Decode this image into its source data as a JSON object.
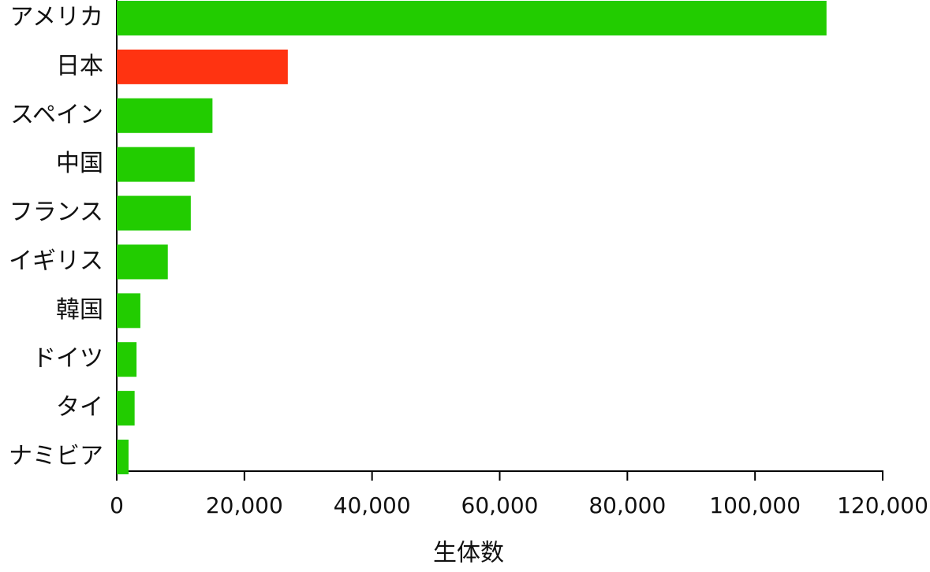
{
  "chart_data": {
    "type": "bar",
    "orientation": "horizontal",
    "categories": [
      "アメリカ",
      "日本",
      "スペイン",
      "中国",
      "フランス",
      "イギリス",
      "韓国",
      "ドイツ",
      "タイ",
      "ナミビア"
    ],
    "values": [
      111200,
      26800,
      15000,
      12200,
      11600,
      8000,
      3700,
      3100,
      2800,
      1850
    ],
    "colors": [
      "#22cc00",
      "#ff3311",
      "#22cc00",
      "#22cc00",
      "#22cc00",
      "#22cc00",
      "#22cc00",
      "#22cc00",
      "#22cc00",
      "#22cc00"
    ],
    "x_label": "生体数",
    "xlim": [
      0,
      120000
    ],
    "xticks": [
      0,
      {
        "value": 20000,
        "label": "20,000"
      },
      {
        "value": 40000,
        "label": "40,000"
      },
      {
        "value": 60000,
        "label": "60,000"
      },
      {
        "value": 80000,
        "label": "80,000"
      },
      {
        "value": 100000,
        "label": "100,000"
      },
      {
        "value": 120000,
        "label": "120,000"
      }
    ],
    "grid": false
  }
}
